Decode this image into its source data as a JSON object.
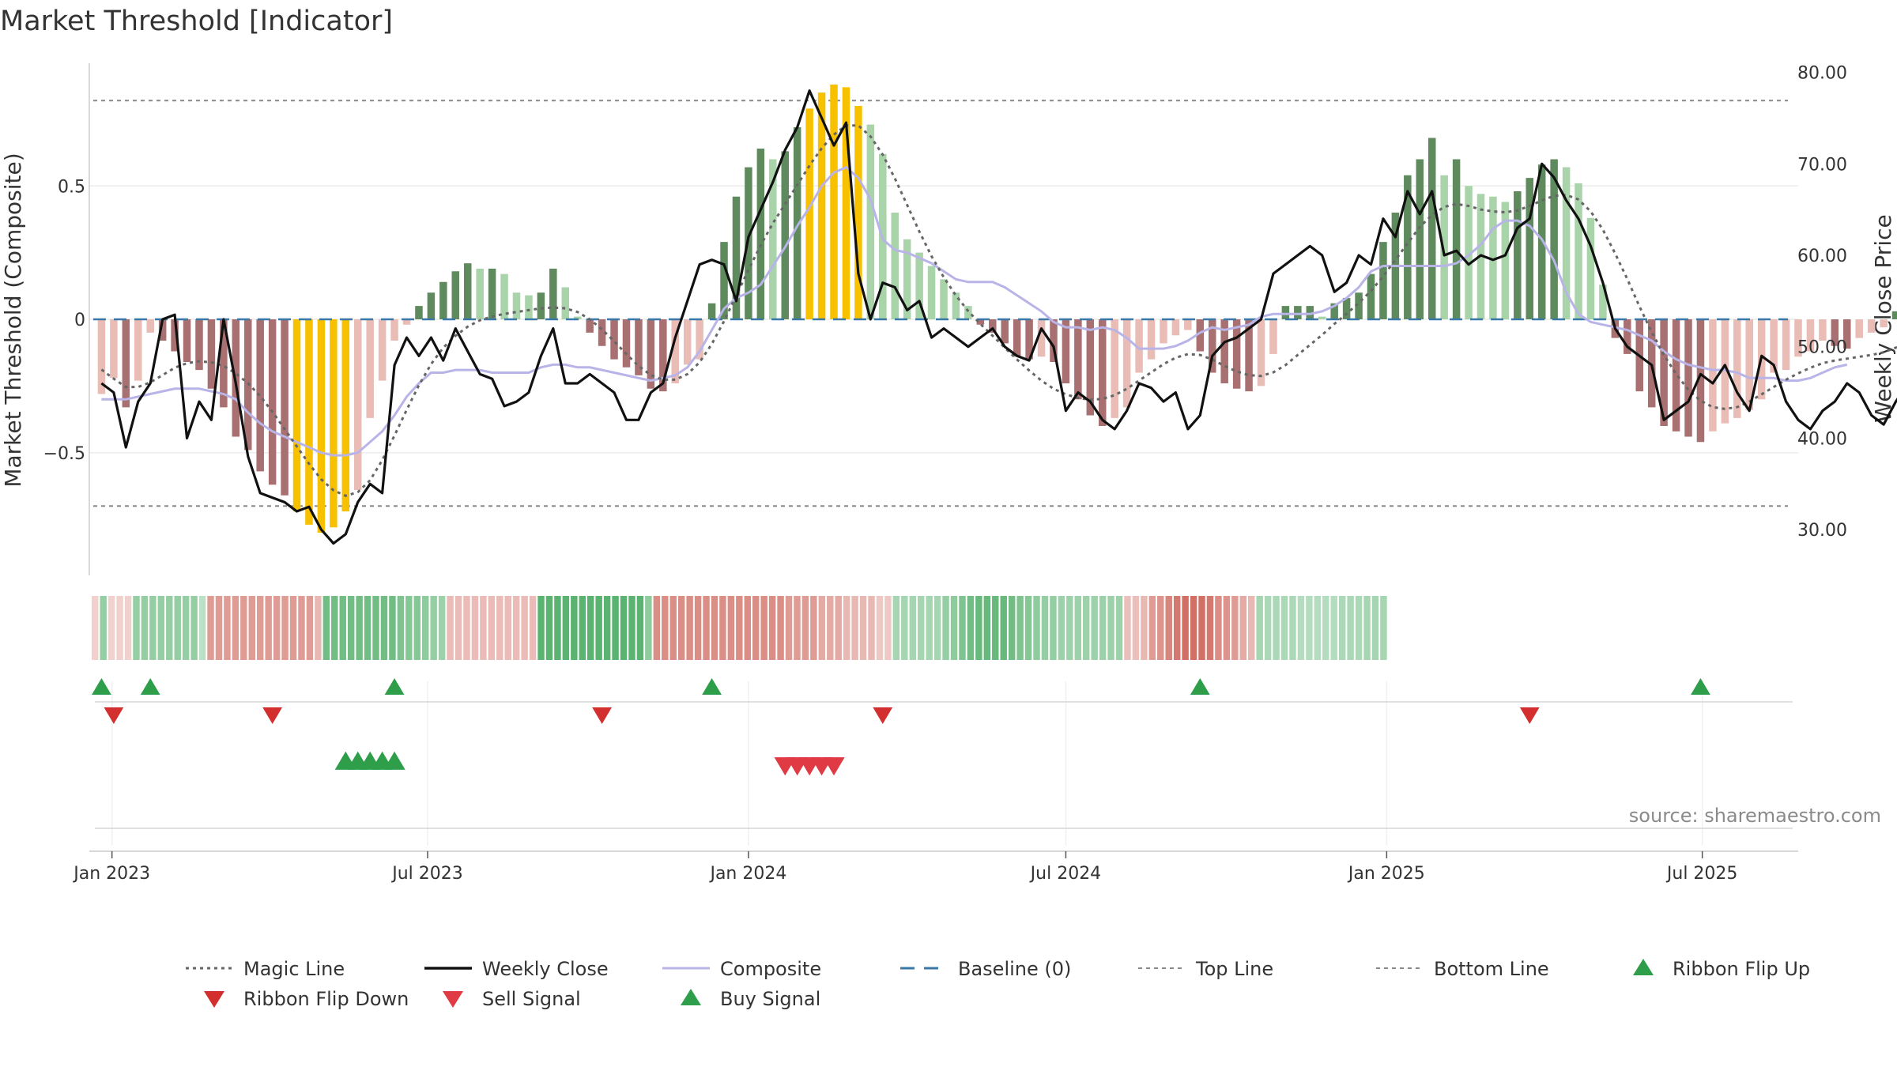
{
  "chart_data": {
    "type": "bar",
    "title": "Market Threshold [Indicator]",
    "ylabel_left": "Market Threshold (Composite)",
    "ylabel_right": "Weekly Close Price",
    "source": "source: sharemaestro.com",
    "left_ticks": [
      0.5,
      0,
      -0.5
    ],
    "left_tick_labels": [
      "0.5",
      "0",
      "−0.5"
    ],
    "ylim_left": [
      -0.96,
      0.96
    ],
    "right_ticks": [
      80,
      70,
      60,
      50,
      40,
      30
    ],
    "right_tick_labels": [
      "80.00",
      "70.00",
      "60.00",
      "50.00",
      "40.00",
      "30.00"
    ],
    "ylim_right": [
      25,
      81
    ],
    "top_line": 0.82,
    "bottom_line": -0.7,
    "x_start": "2022-12-19",
    "x_end": "2025-08-25",
    "x_ticks": [
      "2023-01-01",
      "2023-07-01",
      "2024-01-01",
      "2024-07-01",
      "2025-01-01",
      "2025-07-01"
    ],
    "x_tick_labels": [
      "Jan 2023",
      "Jul 2023",
      "Jan 2024",
      "Jul 2024",
      "Jan 2025",
      "Jul 2025"
    ],
    "grid": true,
    "legend_placement": "bottom",
    "composite_bars": [
      -0.28,
      -0.22,
      -0.33,
      -0.23,
      -0.05,
      -0.08,
      -0.12,
      -0.16,
      -0.19,
      -0.26,
      -0.33,
      -0.44,
      -0.49,
      -0.57,
      -0.62,
      -0.66,
      -0.72,
      -0.77,
      -0.8,
      -0.78,
      -0.72,
      -0.64,
      -0.37,
      -0.23,
      -0.08,
      -0.02,
      0.05,
      0.1,
      0.14,
      0.18,
      0.21,
      0.19,
      0.19,
      0.17,
      0.1,
      0.09,
      0.1,
      0.19,
      0.12,
      0.01,
      -0.05,
      -0.1,
      -0.15,
      -0.18,
      -0.21,
      -0.26,
      -0.27,
      -0.24,
      -0.17,
      -0.15,
      0.06,
      0.29,
      0.46,
      0.57,
      0.64,
      0.6,
      0.63,
      0.72,
      0.79,
      0.85,
      0.88,
      0.87,
      0.8,
      0.73,
      0.62,
      0.4,
      0.3,
      0.25,
      0.2,
      0.15,
      0.1,
      0.05,
      -0.02,
      -0.05,
      -0.09,
      -0.14,
      -0.15,
      -0.14,
      -0.16,
      -0.24,
      -0.3,
      -0.36,
      -0.4,
      -0.37,
      -0.33,
      -0.2,
      -0.15,
      -0.09,
      -0.06,
      -0.04,
      -0.12,
      -0.2,
      -0.24,
      -0.26,
      -0.27,
      -0.25,
      -0.13,
      0.05,
      0.05,
      0.05,
      0.01,
      0.06,
      0.08,
      0.1,
      0.17,
      0.29,
      0.4,
      0.54,
      0.6,
      0.68,
      0.54,
      0.6,
      0.5,
      0.47,
      0.46,
      0.44,
      0.48,
      0.53,
      0.58,
      0.6,
      0.57,
      0.51,
      0.38,
      0.13,
      -0.07,
      -0.13,
      -0.27,
      -0.33,
      -0.4,
      -0.42,
      -0.44,
      -0.46,
      -0.42,
      -0.39,
      -0.37,
      -0.34,
      -0.3,
      -0.2,
      -0.19,
      -0.14,
      -0.12,
      -0.08,
      -0.1,
      -0.11,
      -0.07,
      -0.05,
      -0.03,
      0.03,
      0.1,
      0.17
    ],
    "weekly_close": [
      46,
      45,
      39,
      44,
      46,
      53,
      53.5,
      40,
      44,
      42,
      53,
      46,
      38,
      34,
      33.5,
      33,
      32,
      32.5,
      30,
      28.5,
      29.5,
      33,
      35,
      34,
      48,
      51,
      49,
      51,
      48.5,
      52,
      49.5,
      47,
      46.5,
      43.5,
      44,
      45,
      49,
      52,
      46,
      46,
      47,
      46,
      45,
      42,
      42,
      45,
      46,
      51,
      55,
      59,
      59.5,
      59,
      55,
      62,
      65,
      68,
      71.5,
      74,
      78,
      75,
      72,
      74.5,
      58,
      53,
      57,
      56.5,
      54,
      55,
      51,
      52,
      51,
      50,
      51,
      52,
      50,
      49,
      48.5,
      52,
      50,
      43,
      45,
      44,
      42,
      41,
      43,
      46,
      45.5,
      44,
      45,
      41,
      42.5,
      49,
      50.5,
      51,
      52,
      53,
      58,
      59,
      60,
      61,
      60,
      56,
      57,
      60,
      59,
      64,
      62,
      67,
      64.5,
      67,
      60,
      60.5,
      59,
      60,
      59.5,
      60,
      63,
      64,
      70,
      68.5,
      66,
      64,
      61,
      57,
      52,
      50,
      49,
      48,
      42,
      43,
      44,
      47,
      46,
      48,
      45,
      43,
      49,
      48,
      44,
      42,
      41,
      43,
      44,
      46,
      45,
      42.5,
      41.5,
      44,
      46,
      44,
      46,
      48,
      50
    ],
    "magic_line": [
      47.5,
      46.5,
      45.6,
      45.6,
      46.1,
      46.9,
      47.7,
      48.2,
      48.4,
      48.3,
      47.9,
      47.1,
      46,
      44.6,
      42.9,
      41,
      39.1,
      37.2,
      35.5,
      34.3,
      33.7,
      34.1,
      35.4,
      37.6,
      40.3,
      43.1,
      45.8,
      48.1,
      49.9,
      51.2,
      52.2,
      52.9,
      53.3,
      53.6,
      53.8,
      54,
      54.2,
      54.3,
      54.2,
      53.8,
      53,
      51.9,
      50.6,
      49.2,
      47.9,
      46.9,
      46.4,
      46.4,
      47,
      48.3,
      50.3,
      52.8,
      55.6,
      58.4,
      61.1,
      63.5,
      65.6,
      67.7,
      69.8,
      71.7,
      73.2,
      74.2,
      74.2,
      73,
      71,
      68.4,
      65.5,
      62.6,
      59.9,
      57.6,
      55.6,
      53.9,
      52.5,
      51.2,
      49.9,
      48.6,
      47.4,
      46.3,
      45.4,
      44.8,
      44.4,
      44.2,
      44.3,
      44.7,
      45.4,
      46.3,
      47.2,
      48.1,
      48.8,
      49.2,
      49.1,
      48.6,
      47.9,
      47.3,
      46.9,
      46.8,
      47.2,
      48,
      49.1,
      50.2,
      51.3,
      52.5,
      53.6,
      54.8,
      56.1,
      57.7,
      59.5,
      61.3,
      63.1,
      64.4,
      65.3,
      65.6,
      65.4,
      65,
      64.8,
      64.7,
      64.9,
      65.4,
      66,
      66.5,
      66.6,
      66.1,
      64.8,
      62.8,
      60.2,
      57.4,
      54.4,
      51.6,
      49.1,
      47,
      45.3,
      44.1,
      43.4,
      43.2,
      43.4,
      44,
      44.8,
      45.6,
      46.4,
      47.1,
      47.7,
      48.2,
      48.5,
      48.7,
      48.9,
      49.1,
      49.4,
      49.9,
      50.6,
      51.4
    ],
    "composite_line": [
      -0.3,
      -0.3,
      -0.3,
      -0.29,
      -0.28,
      -0.27,
      -0.26,
      -0.26,
      -0.26,
      -0.27,
      -0.28,
      -0.3,
      -0.35,
      -0.39,
      -0.42,
      -0.44,
      -0.46,
      -0.48,
      -0.5,
      -0.51,
      -0.51,
      -0.5,
      -0.46,
      -0.42,
      -0.36,
      -0.29,
      -0.24,
      -0.2,
      -0.2,
      -0.19,
      -0.19,
      -0.19,
      -0.2,
      -0.2,
      -0.2,
      -0.2,
      -0.18,
      -0.17,
      -0.17,
      -0.18,
      -0.18,
      -0.19,
      -0.2,
      -0.21,
      -0.22,
      -0.23,
      -0.22,
      -0.21,
      -0.18,
      -0.12,
      -0.04,
      0.04,
      0.08,
      0.1,
      0.13,
      0.2,
      0.27,
      0.35,
      0.42,
      0.5,
      0.55,
      0.57,
      0.53,
      0.45,
      0.3,
      0.26,
      0.25,
      0.23,
      0.21,
      0.18,
      0.15,
      0.14,
      0.14,
      0.14,
      0.12,
      0.09,
      0.06,
      0.03,
      -0.01,
      -0.03,
      -0.03,
      -0.04,
      -0.03,
      -0.04,
      -0.07,
      -0.11,
      -0.11,
      -0.11,
      -0.1,
      -0.08,
      -0.05,
      -0.03,
      -0.04,
      -0.03,
      -0.02,
      0.01,
      0.02,
      0.02,
      0.02,
      0.02,
      0.03,
      0.05,
      0.08,
      0.12,
      0.18,
      0.2,
      0.2,
      0.2,
      0.2,
      0.2,
      0.2,
      0.21,
      0.24,
      0.28,
      0.34,
      0.37,
      0.37,
      0.35,
      0.3,
      0.22,
      0.1,
      0.02,
      -0.01,
      -0.02,
      -0.03,
      -0.04,
      -0.06,
      -0.08,
      -0.12,
      -0.15,
      -0.17,
      -0.18,
      -0.19,
      -0.19,
      -0.2,
      -0.22,
      -0.22,
      -0.22,
      -0.23,
      -0.23,
      -0.22,
      -0.2,
      -0.18,
      -0.17
    ],
    "ribbon_start": "2022-12-19",
    "ribbon": [
      -0.12,
      0.45,
      -0.12,
      -0.12,
      -0.12,
      0.45,
      0.45,
      0.45,
      0.45,
      0.45,
      0.45,
      0.45,
      0.45,
      0.2,
      -0.5,
      -0.5,
      -0.5,
      -0.5,
      -0.5,
      -0.5,
      -0.5,
      -0.5,
      -0.5,
      -0.5,
      -0.5,
      -0.5,
      -0.5,
      -0.3,
      0.7,
      0.7,
      0.7,
      0.7,
      0.7,
      0.7,
      0.7,
      0.7,
      0.7,
      0.6,
      0.55,
      0.55,
      0.5,
      0.45,
      0.4,
      -0.28,
      -0.28,
      -0.28,
      -0.28,
      -0.28,
      -0.28,
      -0.28,
      -0.28,
      -0.28,
      -0.28,
      -0.28,
      0.85,
      0.85,
      0.85,
      0.85,
      0.85,
      0.85,
      0.85,
      0.85,
      0.85,
      0.85,
      0.85,
      0.85,
      0.85,
      0.5,
      -0.6,
      -0.6,
      -0.6,
      -0.6,
      -0.6,
      -0.6,
      -0.6,
      -0.6,
      -0.6,
      -0.6,
      -0.6,
      -0.6,
      -0.6,
      -0.6,
      -0.6,
      -0.6,
      -0.5,
      -0.5,
      -0.5,
      -0.5,
      -0.4,
      -0.4,
      -0.4,
      -0.3,
      -0.3,
      -0.3,
      -0.3,
      -0.2,
      -0.2,
      0.35,
      0.35,
      0.35,
      0.35,
      0.35,
      0.35,
      0.45,
      0.5,
      0.6,
      0.7,
      0.75,
      0.75,
      0.75,
      0.75,
      0.7,
      0.6,
      0.55,
      0.5,
      0.45,
      0.45,
      0.4,
      0.4,
      0.4,
      0.4,
      0.4,
      0.4,
      0.4,
      0.4,
      -0.25,
      -0.25,
      -0.3,
      -0.5,
      -0.55,
      -0.65,
      -0.75,
      -0.8,
      -0.8,
      -0.8,
      -0.75,
      -0.6,
      -0.55,
      -0.5,
      -0.4,
      -0.3,
      0.35,
      0.3,
      0.3,
      0.3,
      0.3,
      0.25,
      0.25,
      0.25,
      0.25,
      0.25,
      0.3,
      0.3,
      0.3,
      0.35,
      0.35,
      0.35
    ],
    "ribbon_flip_up_dates": [
      "2022-12-26",
      "2023-01-23",
      "2023-06-12",
      "2023-12-11",
      "2024-09-16",
      "2025-06-30"
    ],
    "ribbon_flip_down_dates": [
      "2023-01-02",
      "2023-04-03",
      "2023-10-09",
      "2024-03-18",
      "2025-03-24"
    ],
    "buy_signal_dates": [
      "2023-05-15",
      "2023-05-22",
      "2023-05-29",
      "2023-06-05",
      "2023-06-12"
    ],
    "sell_signal_dates": [
      "2024-01-22",
      "2024-01-29",
      "2024-02-05",
      "2024-02-12",
      "2024-02-19"
    ],
    "colors": {
      "bar_strong_pos": "#5e8a5e",
      "bar_weak_pos": "#a9d3a9",
      "bar_strong_neg": "#a87070",
      "bar_weak_neg": "#e9bcb6",
      "bar_extreme": "#f7c100",
      "weekly_close": "#111111",
      "magic_line": "#666666",
      "composite": "#b9b4e8",
      "baseline": "#3a78a8",
      "threshold_lines": "#888888",
      "flip_up": "#2e9e4a",
      "flip_down": "#d32f2f",
      "sell": "#e03a44",
      "buy": "#2e9e4a"
    },
    "legend": [
      {
        "label": "Magic Line",
        "kind": "dotted",
        "color": "#666666"
      },
      {
        "label": "Weekly Close",
        "kind": "solid",
        "color": "#111111"
      },
      {
        "label": "Composite",
        "kind": "solid-light",
        "color": "#b9b4e8"
      },
      {
        "label": "Baseline (0)",
        "kind": "dashed",
        "color": "#3a78a8"
      },
      {
        "label": "Top Line",
        "kind": "thin-dashed",
        "color": "#888888"
      },
      {
        "label": "Bottom Line",
        "kind": "thin-dashed",
        "color": "#888888"
      },
      {
        "label": "Ribbon Flip Up",
        "kind": "triangle-up",
        "color": "#2e9e4a"
      },
      {
        "label": "Ribbon Flip Down",
        "kind": "triangle-down",
        "color": "#d32f2f"
      },
      {
        "label": "Sell Signal",
        "kind": "triangle-down",
        "color": "#e03a44"
      },
      {
        "label": "Buy Signal",
        "kind": "triangle-up",
        "color": "#2e9e4a"
      }
    ]
  }
}
